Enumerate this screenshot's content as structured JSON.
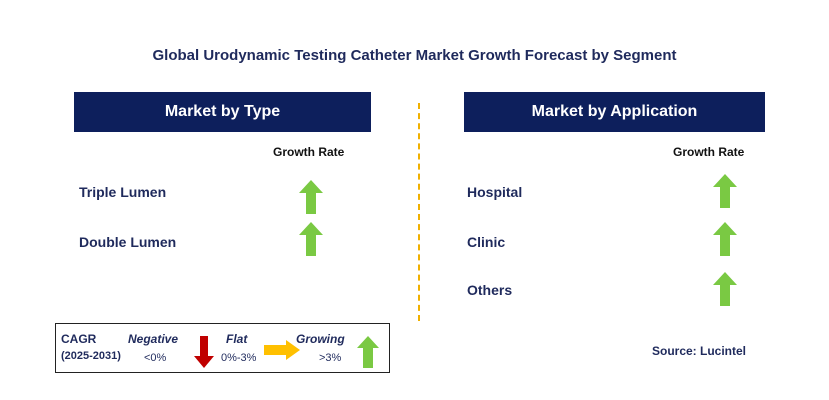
{
  "title": "Global Urodynamic Testing Catheter Market Growth Forecast by Segment",
  "left_panel": {
    "header": "Market by Type",
    "column_header": "Growth Rate",
    "segments": [
      "Triple Lumen",
      "Double Lumen"
    ]
  },
  "right_panel": {
    "header": "Market by Application",
    "column_header": "Growth Rate",
    "segments": [
      "Hospital",
      "Clinic",
      "Others"
    ]
  },
  "legend": {
    "cagr_label": "CAGR",
    "period": "(2025-2031)",
    "negative": {
      "label": "Negative",
      "range": "<0%"
    },
    "flat": {
      "label": "Flat",
      "range": "0%-3%"
    },
    "growing": {
      "label": "Growing",
      "range": ">3%"
    }
  },
  "source": "Source: Lucintel",
  "colors": {
    "header_bg": "#0d1f5c",
    "growing_arrow": "#7ac943",
    "negative_arrow": "#c00000",
    "flat_arrow": "#ffc000",
    "divider": "#f0b000"
  }
}
